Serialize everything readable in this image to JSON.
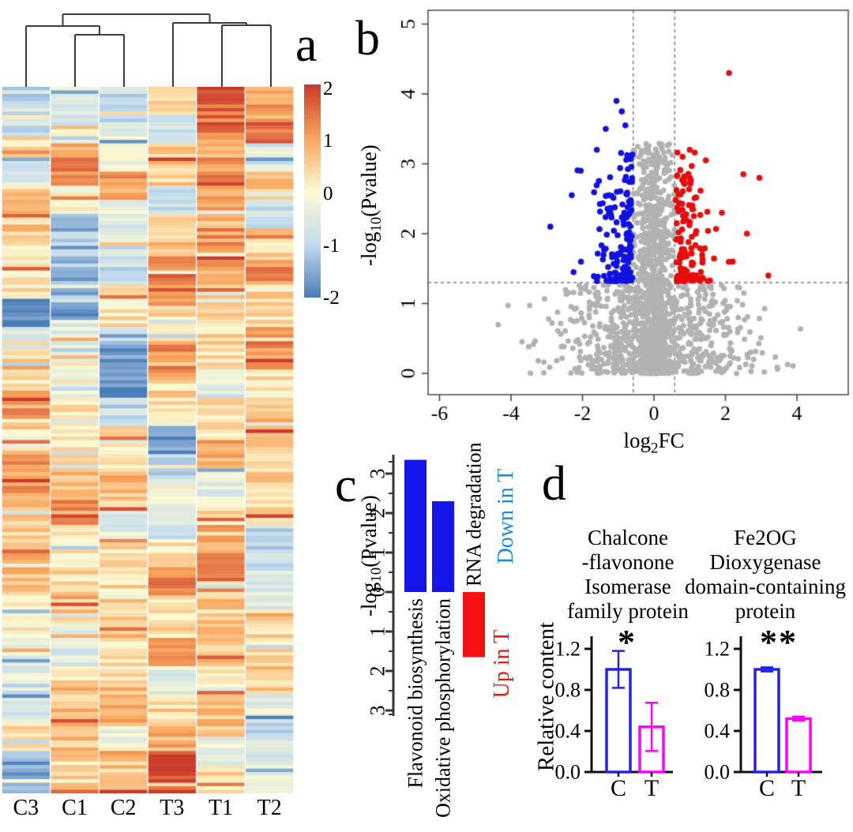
{
  "figure": {
    "background": "#ffffff",
    "panel_labels": {
      "a": "a",
      "b": "b",
      "c": "c",
      "d": "d"
    }
  },
  "chart_data": [
    {
      "name": "clustered-heatmap",
      "type": "heatmap",
      "categories": [
        "C3",
        "C1",
        "C2",
        "T3",
        "T1",
        "T2"
      ],
      "n_rows": 200,
      "value_range": [
        -2,
        2
      ],
      "colorbar": {
        "ticks": [
          2,
          1,
          0,
          -1,
          -2
        ]
      },
      "colormap_stops": [
        {
          "v": -2,
          "color": "#4b7db8"
        },
        {
          "v": -1,
          "color": "#c3dcee"
        },
        {
          "v": 0,
          "color": "#fdfad2"
        },
        {
          "v": 1,
          "color": "#f8a55c"
        },
        {
          "v": 2,
          "color": "#cb3a2a"
        }
      ],
      "dendrogram": {
        "leaf_order": [
          "C3",
          "C1",
          "C2",
          "T3",
          "T1",
          "T2"
        ],
        "links": [
          {
            "pair": [
              "C1",
              "C2"
            ],
            "height": 0.72
          },
          {
            "pair": [
              "C3",
              "C1+C2"
            ],
            "height": 0.84
          },
          {
            "pair": [
              "T1",
              "T2"
            ],
            "height": 0.85
          },
          {
            "pair": [
              "T3",
              "T1+T2"
            ],
            "height": 0.88
          },
          {
            "pair": [
              "C-cluster",
              "T-cluster"
            ],
            "height": 1.0
          }
        ]
      },
      "column_profiles": {
        "C3": [
          [
            0,
            0.07,
            -0.9
          ],
          [
            0.07,
            0.1,
            0.2
          ],
          [
            0.1,
            0.14,
            -0.6
          ],
          [
            0.14,
            0.22,
            0.5
          ],
          [
            0.22,
            0.3,
            0.2
          ],
          [
            0.3,
            0.34,
            -1.8
          ],
          [
            0.34,
            0.37,
            -0.6
          ],
          [
            0.37,
            0.43,
            0.3
          ],
          [
            0.43,
            0.47,
            1.3
          ],
          [
            0.47,
            0.52,
            0.4
          ],
          [
            0.52,
            0.58,
            1.0
          ],
          [
            0.58,
            0.66,
            0.5
          ],
          [
            0.66,
            0.72,
            0.8
          ],
          [
            0.72,
            0.78,
            0.1
          ],
          [
            0.78,
            0.84,
            -0.5
          ],
          [
            0.84,
            0.9,
            -0.7
          ],
          [
            0.9,
            0.94,
            0.3
          ],
          [
            0.94,
            1,
            -1.5
          ]
        ],
        "C1": [
          [
            0,
            0.05,
            -0.6
          ],
          [
            0.05,
            0.09,
            0.3
          ],
          [
            0.09,
            0.13,
            1.3
          ],
          [
            0.13,
            0.18,
            0.1
          ],
          [
            0.18,
            0.24,
            -1.0
          ],
          [
            0.24,
            0.33,
            -1.4
          ],
          [
            0.33,
            0.38,
            -0.4
          ],
          [
            0.38,
            0.44,
            -0.1
          ],
          [
            0.44,
            0.52,
            0.3
          ],
          [
            0.52,
            0.58,
            0.6
          ],
          [
            0.58,
            0.62,
            1.1
          ],
          [
            0.62,
            0.7,
            0.3
          ],
          [
            0.7,
            0.76,
            0.7
          ],
          [
            0.76,
            0.82,
            -0.5
          ],
          [
            0.82,
            0.88,
            0.3
          ],
          [
            0.88,
            0.94,
            0.7
          ],
          [
            0.94,
            1,
            0.4
          ]
        ],
        "C2": [
          [
            0,
            0.06,
            -0.8
          ],
          [
            0.06,
            0.12,
            -0.3
          ],
          [
            0.12,
            0.16,
            1.1
          ],
          [
            0.16,
            0.22,
            -0.4
          ],
          [
            0.22,
            0.28,
            -0.8
          ],
          [
            0.28,
            0.33,
            0.2
          ],
          [
            0.33,
            0.37,
            -0.6
          ],
          [
            0.37,
            0.44,
            -1.8
          ],
          [
            0.44,
            0.48,
            -0.9
          ],
          [
            0.48,
            0.55,
            0.3
          ],
          [
            0.55,
            0.6,
            0.7
          ],
          [
            0.6,
            0.64,
            -0.4
          ],
          [
            0.64,
            0.72,
            0.3
          ],
          [
            0.72,
            0.78,
            0.6
          ],
          [
            0.78,
            0.84,
            0.2
          ],
          [
            0.84,
            0.9,
            0.8
          ],
          [
            0.9,
            0.95,
            -0.2
          ],
          [
            0.95,
            1,
            0.5
          ]
        ],
        "T3": [
          [
            0,
            0.04,
            0.3
          ],
          [
            0.04,
            0.08,
            -0.8
          ],
          [
            0.08,
            0.14,
            0.5
          ],
          [
            0.14,
            0.18,
            -0.9
          ],
          [
            0.18,
            0.24,
            0.6
          ],
          [
            0.24,
            0.31,
            1.0
          ],
          [
            0.31,
            0.36,
            0.4
          ],
          [
            0.36,
            0.41,
            1.1
          ],
          [
            0.41,
            0.46,
            0.4
          ],
          [
            0.46,
            0.48,
            0.5
          ],
          [
            0.48,
            0.52,
            -1.8
          ],
          [
            0.52,
            0.56,
            -0.9
          ],
          [
            0.56,
            0.6,
            -0.2
          ],
          [
            0.6,
            0.64,
            -0.7
          ],
          [
            0.64,
            0.68,
            0.2
          ],
          [
            0.68,
            0.72,
            1.2
          ],
          [
            0.72,
            0.78,
            0.4
          ],
          [
            0.78,
            0.82,
            1.0
          ],
          [
            0.82,
            0.86,
            -0.4
          ],
          [
            0.86,
            0.9,
            0.4
          ],
          [
            0.9,
            0.94,
            0.9
          ],
          [
            0.94,
            1,
            1.8
          ]
        ],
        "T1": [
          [
            0,
            0.07,
            1.5
          ],
          [
            0.07,
            0.1,
            0.7
          ],
          [
            0.1,
            0.14,
            1.2
          ],
          [
            0.14,
            0.2,
            0.8
          ],
          [
            0.2,
            0.26,
            1.1
          ],
          [
            0.26,
            0.32,
            0.6
          ],
          [
            0.32,
            0.4,
            0.3
          ],
          [
            0.4,
            0.44,
            -0.5
          ],
          [
            0.44,
            0.5,
            0.3
          ],
          [
            0.5,
            0.54,
            0.8
          ],
          [
            0.54,
            0.58,
            -0.4
          ],
          [
            0.58,
            0.62,
            0.3
          ],
          [
            0.62,
            0.66,
            0.9
          ],
          [
            0.66,
            0.7,
            1.4
          ],
          [
            0.7,
            0.76,
            0.5
          ],
          [
            0.76,
            0.82,
            0.7
          ],
          [
            0.82,
            0.86,
            0.2
          ],
          [
            0.86,
            0.92,
            0.6
          ],
          [
            0.92,
            0.96,
            -0.3
          ],
          [
            0.96,
            1,
            0.4
          ]
        ],
        "T2": [
          [
            0,
            0.05,
            0.9
          ],
          [
            0.05,
            0.08,
            1.4
          ],
          [
            0.08,
            0.12,
            -0.6
          ],
          [
            0.12,
            0.16,
            0.5
          ],
          [
            0.16,
            0.2,
            -0.7
          ],
          [
            0.2,
            0.24,
            0.4
          ],
          [
            0.24,
            0.3,
            1.1
          ],
          [
            0.3,
            0.34,
            0.5
          ],
          [
            0.34,
            0.4,
            1.2
          ],
          [
            0.4,
            0.44,
            0.3
          ],
          [
            0.44,
            0.5,
            0.7
          ],
          [
            0.5,
            0.56,
            0.5
          ],
          [
            0.56,
            0.62,
            0.4
          ],
          [
            0.62,
            0.68,
            -1.0
          ],
          [
            0.68,
            0.74,
            -0.6
          ],
          [
            0.74,
            0.8,
            0.3
          ],
          [
            0.8,
            0.86,
            0.5
          ],
          [
            0.86,
            0.9,
            -0.5
          ],
          [
            0.9,
            0.95,
            -0.8
          ],
          [
            0.95,
            1,
            -0.4
          ]
        ]
      }
    },
    {
      "name": "volcano-plot",
      "type": "scatter",
      "xlabel": {
        "pre": "log",
        "sub": "2",
        "post": "FC"
      },
      "ylabel": {
        "pre": "-log",
        "sub": "10",
        "post": "(Pvalue)"
      },
      "xlim": [
        -6.3,
        5.4
      ],
      "ylim": [
        -0.3,
        5.2
      ],
      "xticks": [
        -6,
        -4,
        -2,
        0,
        2,
        4
      ],
      "yticks": [
        0,
        1,
        2,
        3,
        4,
        5
      ],
      "thresholds": {
        "log2fc_cutoff": 0.58,
        "pvalue_line": 1.3
      },
      "groups": [
        {
          "label": "down-regulated",
          "color": "#1212e0",
          "count": 150,
          "x_range": [
            -2.95,
            -0.58
          ],
          "y_range": [
            1.3,
            3.9
          ]
        },
        {
          "label": "up-regulated",
          "color": "#e60d0d",
          "count": 140,
          "x_range": [
            0.58,
            3.25
          ],
          "y_range": [
            1.3,
            4.35
          ]
        },
        {
          "label": "not-significant",
          "color": "#b2b2b2",
          "count": 1600,
          "x_range": [
            -4.6,
            4.1
          ],
          "y_range": [
            0,
            3.25
          ]
        }
      ],
      "notable_points": {
        "up_outlier": [
          2.1,
          4.3
        ],
        "down_high": [
          -1.05,
          3.9
        ],
        "left_extreme": [
          -4.5,
          0.75
        ],
        "right_extreme": [
          3.9,
          0.9
        ]
      }
    },
    {
      "name": "pathway-enrichment",
      "type": "bar",
      "ylabel": {
        "pre": "-log",
        "sub": "10",
        "post": "(Pvalue)"
      },
      "axis_ticks": [
        3,
        2,
        1,
        0,
        1,
        2,
        3
      ],
      "categories": [
        "Flavonoid biosynthesis",
        "Oxidative phosphorylation",
        "RNA degradation"
      ],
      "values": [
        3.35,
        2.3,
        1.65
      ],
      "directions": [
        "down",
        "down",
        "up"
      ],
      "bar_colors": {
        "down": "#1414eb",
        "up": "#f51111"
      },
      "annotations": [
        {
          "text": "Down in T",
          "color": "#1e8ad6"
        },
        {
          "text": "Up in T",
          "color": "#f51111"
        }
      ]
    },
    {
      "name": "protein-validation",
      "type": "bar",
      "ylabel": "Relative content",
      "yticks": [
        "0.0",
        "0.4",
        "0.8",
        "1.2"
      ],
      "categories": [
        "C",
        "T"
      ],
      "bar_colors": {
        "C": "#2222e8",
        "T": "#ff00ff"
      },
      "subplots": [
        {
          "title_lines": [
            "Chalcone",
            "-flavonone",
            "Isomerase",
            "family protein"
          ],
          "significance": "*",
          "bars": [
            {
              "label": "C",
              "value": 1.0,
              "error": 0.18
            },
            {
              "label": "T",
              "value": 0.44,
              "error": 0.235
            }
          ]
        },
        {
          "title_lines": [
            "Fe2OG",
            "Dioxygenase",
            "domain-containing",
            "protein"
          ],
          "significance": "**",
          "bars": [
            {
              "label": "C",
              "value": 1.0,
              "error": 0.02
            },
            {
              "label": "T",
              "value": 0.52,
              "error": 0.02
            }
          ]
        }
      ]
    }
  ]
}
